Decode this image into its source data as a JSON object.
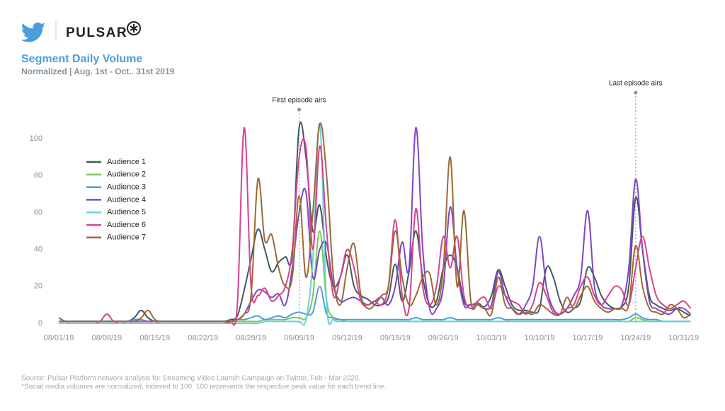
{
  "brand": "PULSAR",
  "footnotes": [
    "Source: Pulsar Platform network analysis for Streaming Video Launch Campaign on Twitter, Feb - Mar 2020.",
    "*Social media volumes are normalized, indexed to 100. 100 represents the respective peak value for each trend line."
  ],
  "chart_data": {
    "type": "line",
    "title": "Segment Daily Volume",
    "subtitle": "Normalized | Aug. 1st - Oct.. 31st 2019",
    "x": [
      "08/01/19",
      "08/02/19",
      "08/03/19",
      "08/04/19",
      "08/05/19",
      "08/06/19",
      "08/07/19",
      "08/08/19",
      "08/09/19",
      "08/10/19",
      "08/11/19",
      "08/12/19",
      "08/13/19",
      "08/14/19",
      "08/15/19",
      "08/16/19",
      "08/17/19",
      "08/18/19",
      "08/19/19",
      "08/20/19",
      "08/21/19",
      "08/22/19",
      "08/23/19",
      "08/24/19",
      "08/25/19",
      "08/26/19",
      "08/27/19",
      "08/28/19",
      "08/29/19",
      "08/30/19",
      "08/31/19",
      "09/01/19",
      "09/02/19",
      "09/03/19",
      "09/04/19",
      "09/05/19",
      "09/06/19",
      "09/07/19",
      "09/08/19",
      "09/09/19",
      "09/10/19",
      "09/11/19",
      "09/12/19",
      "09/13/19",
      "09/14/19",
      "09/15/19",
      "09/16/19",
      "09/17/19",
      "09/18/19",
      "09/19/19",
      "09/20/19",
      "09/21/19",
      "09/22/19",
      "09/23/19",
      "09/24/19",
      "09/25/19",
      "09/26/19",
      "09/27/19",
      "09/28/19",
      "09/29/19",
      "09/30/19",
      "10/01/19",
      "10/02/19",
      "10/03/19",
      "10/04/19",
      "10/05/19",
      "10/06/19",
      "10/07/19",
      "10/08/19",
      "10/09/19",
      "10/10/19",
      "10/11/19",
      "10/12/19",
      "10/13/19",
      "10/14/19",
      "10/15/19",
      "10/16/19",
      "10/17/19",
      "10/18/19",
      "10/19/19",
      "10/20/19",
      "10/21/19",
      "10/22/19",
      "10/23/19",
      "10/24/19",
      "10/25/19",
      "10/26/19",
      "10/27/19",
      "10/28/19",
      "10/29/19",
      "10/30/19",
      "10/31/19",
      "11/01/19"
    ],
    "xticks": [
      "08/01/19",
      "08/08/19",
      "08/15/19",
      "08/22/19",
      "08/29/19",
      "09/05/19",
      "09/12/19",
      "09/19/19",
      "09/26/19",
      "10/03/19",
      "10/10/19",
      "10/17/19",
      "10/24/19",
      "10/31/19"
    ],
    "ylim": [
      0,
      110
    ],
    "yticks": [
      0,
      20,
      40,
      60,
      80,
      100
    ],
    "grid": false,
    "legend": "left",
    "annotations": [
      {
        "text": "First episode airs",
        "x": "09/05/19"
      },
      {
        "text": "Last episode airs",
        "x": "10/24/19"
      }
    ],
    "series": [
      {
        "name": "Audience 1",
        "color": "#3f5b60",
        "values": [
          1,
          1,
          1,
          1,
          1,
          1,
          1,
          1,
          1,
          1,
          1,
          3,
          7,
          3,
          1,
          1,
          1,
          1,
          1,
          1,
          1,
          1,
          1,
          1,
          1,
          2,
          4,
          18,
          35,
          51,
          40,
          28,
          33,
          36,
          37,
          106,
          90,
          50,
          64,
          35,
          20,
          25,
          37,
          20,
          15,
          13,
          10,
          10,
          14,
          32,
          12,
          28,
          50,
          25,
          10,
          12,
          30,
          37,
          30,
          12,
          10,
          11,
          9,
          15,
          29,
          20,
          10,
          7,
          7,
          6,
          8,
          30,
          25,
          12,
          6,
          8,
          12,
          30,
          25,
          15,
          10,
          8,
          9,
          20,
          68,
          40,
          15,
          10,
          8,
          7,
          8,
          6,
          4
        ]
      },
      {
        "name": "Audience 2",
        "color": "#7dc84e",
        "values": [
          1,
          1,
          1,
          1,
          1,
          1,
          1,
          1,
          1,
          1,
          1,
          1,
          1,
          1,
          1,
          1,
          1,
          1,
          1,
          1,
          1,
          1,
          1,
          1,
          1,
          1,
          1,
          1,
          1,
          1,
          2,
          2,
          2,
          2,
          3,
          3,
          3,
          15,
          50,
          12,
          3,
          2,
          1,
          1,
          1,
          1,
          1,
          1,
          1,
          1,
          1,
          1,
          1,
          1,
          1,
          1,
          1,
          1,
          1,
          1,
          1,
          1,
          1,
          1,
          1,
          1,
          1,
          1,
          1,
          1,
          1,
          1,
          1,
          1,
          1,
          1,
          1,
          1,
          1,
          1,
          1,
          1,
          1,
          1,
          3,
          2,
          1,
          1,
          1,
          1,
          1,
          1,
          1
        ]
      },
      {
        "name": "Audience 3",
        "color": "#4a9ede",
        "values": [
          1,
          1,
          1,
          1,
          1,
          1,
          1,
          1,
          1,
          1,
          1,
          2,
          2,
          1,
          1,
          1,
          1,
          1,
          1,
          1,
          1,
          1,
          1,
          1,
          1,
          1,
          2,
          2,
          3,
          4,
          2,
          3,
          4,
          3,
          5,
          6,
          5,
          6,
          20,
          5,
          3,
          2,
          2,
          2,
          2,
          2,
          2,
          2,
          2,
          2,
          2,
          2,
          3,
          2,
          2,
          2,
          2,
          3,
          2,
          2,
          2,
          2,
          2,
          2,
          3,
          2,
          2,
          2,
          2,
          2,
          2,
          2,
          2,
          2,
          2,
          2,
          2,
          2,
          2,
          2,
          2,
          2,
          2,
          3,
          5,
          3,
          2,
          2,
          1,
          1,
          1,
          1,
          1
        ]
      },
      {
        "name": "Audience 4",
        "color": "#8245c5",
        "values": [
          1,
          1,
          1,
          1,
          1,
          1,
          1,
          1,
          1,
          1,
          1,
          1,
          1,
          1,
          1,
          1,
          1,
          1,
          1,
          1,
          1,
          1,
          1,
          1,
          1,
          1,
          2,
          5,
          12,
          18,
          17,
          14,
          16,
          10,
          30,
          60,
          71,
          25,
          40,
          43,
          20,
          12,
          13,
          14,
          12,
          10,
          12,
          14,
          10,
          20,
          44,
          30,
          106,
          40,
          8,
          8,
          20,
          63,
          30,
          10,
          10,
          10,
          8,
          10,
          28,
          15,
          8,
          5,
          10,
          20,
          47,
          20,
          8,
          5,
          8,
          15,
          25,
          61,
          20,
          10,
          8,
          8,
          10,
          30,
          78,
          40,
          12,
          8,
          6,
          5,
          8,
          8,
          5
        ]
      },
      {
        "name": "Audience 5",
        "color": "#67d0dd",
        "values": [
          0,
          0,
          0,
          0,
          0,
          0,
          0,
          0,
          0,
          0,
          0,
          0,
          0,
          0,
          0,
          0,
          0,
          0,
          0,
          0,
          0,
          0,
          0,
          0,
          0,
          0,
          0,
          0,
          0,
          0,
          1,
          1,
          1,
          1,
          1,
          1,
          2,
          35,
          108,
          10,
          2,
          1,
          1,
          1,
          1,
          1,
          1,
          1,
          1,
          1,
          1,
          1,
          1,
          1,
          1,
          1,
          1,
          1,
          1,
          1,
          1,
          1,
          1,
          1,
          1,
          1,
          1,
          1,
          1,
          1,
          1,
          1,
          1,
          1,
          1,
          1,
          1,
          1,
          1,
          1,
          1,
          1,
          1,
          1,
          1,
          1,
          1,
          1,
          1,
          1,
          1,
          1,
          1
        ]
      },
      {
        "name": "Audience 6",
        "color": "#d8428f",
        "values": [
          1,
          1,
          1,
          1,
          1,
          1,
          1,
          5,
          1,
          1,
          1,
          1,
          1,
          1,
          1,
          1,
          1,
          1,
          1,
          1,
          1,
          1,
          1,
          1,
          1,
          1,
          10,
          106,
          20,
          15,
          19,
          12,
          15,
          20,
          40,
          90,
          95,
          40,
          96,
          50,
          15,
          25,
          40,
          30,
          12,
          10,
          12,
          10,
          20,
          56,
          15,
          8,
          62,
          20,
          10,
          20,
          47,
          30,
          47,
          15,
          8,
          12,
          14,
          8,
          20,
          15,
          12,
          10,
          5,
          10,
          22,
          15,
          6,
          5,
          8,
          10,
          20,
          25,
          15,
          10,
          15,
          20,
          18,
          10,
          30,
          47,
          30,
          15,
          10,
          8,
          10,
          12,
          8
        ]
      },
      {
        "name": "Audience 7",
        "color": "#9b6a36",
        "values": [
          3,
          1,
          1,
          1,
          1,
          1,
          1,
          1,
          1,
          1,
          1,
          1,
          3,
          7,
          2,
          1,
          1,
          1,
          1,
          1,
          1,
          1,
          1,
          1,
          1,
          1,
          2,
          5,
          15,
          78,
          45,
          48,
          30,
          20,
          25,
          69,
          25,
          60,
          108,
          80,
          25,
          10,
          30,
          43,
          15,
          8,
          10,
          15,
          20,
          50,
          25,
          10,
          15,
          25,
          27,
          10,
          30,
          90,
          20,
          61,
          12,
          10,
          8,
          5,
          25,
          10,
          8,
          5,
          6,
          5,
          10,
          8,
          5,
          5,
          14,
          8,
          15,
          20,
          12,
          8,
          6,
          8,
          8,
          10,
          42,
          20,
          8,
          6,
          5,
          10,
          8,
          3,
          5
        ]
      }
    ]
  }
}
